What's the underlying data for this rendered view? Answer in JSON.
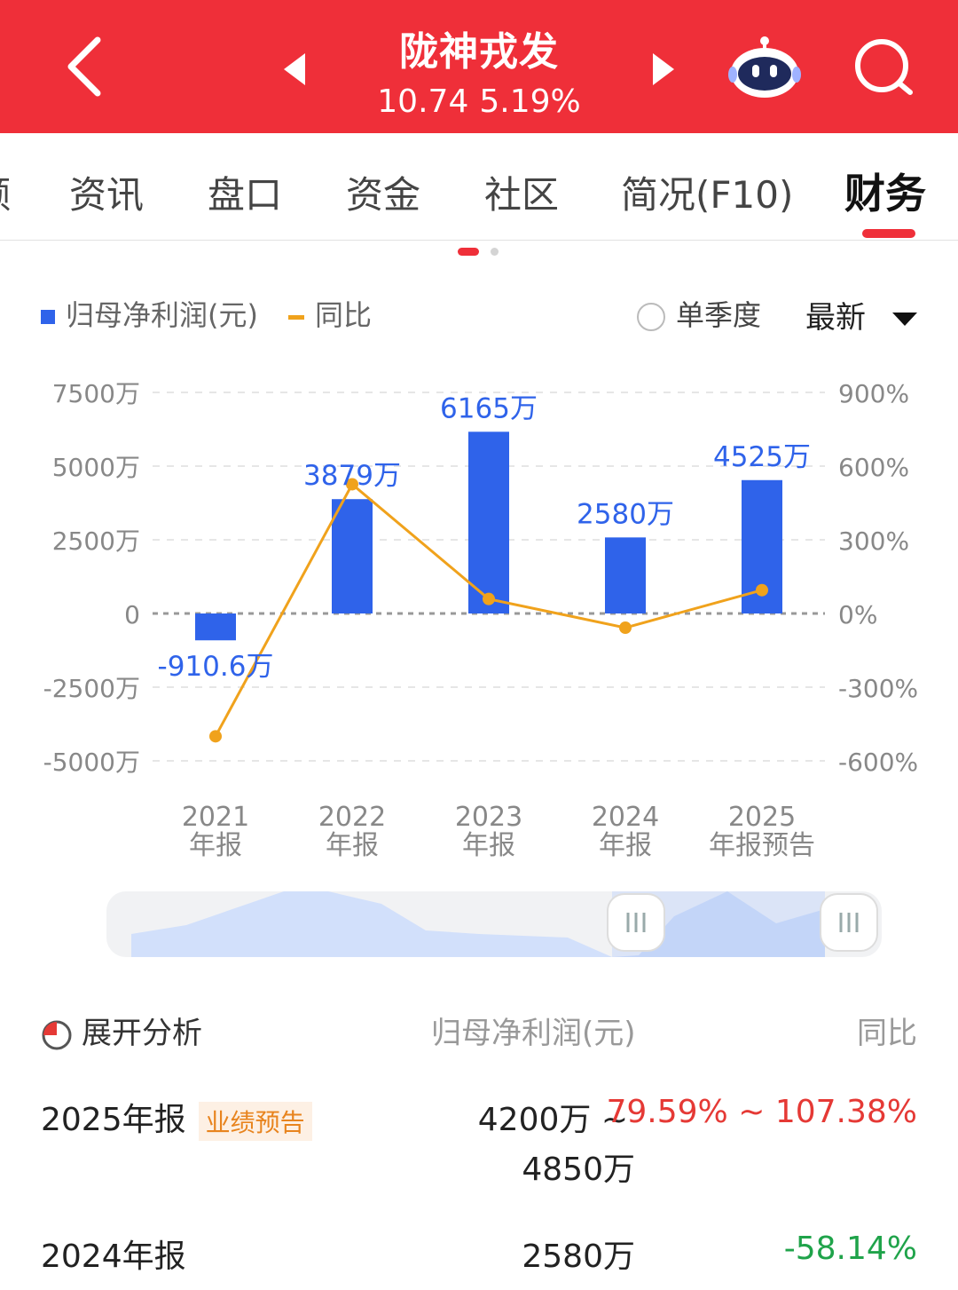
{
  "header": {
    "title": "陇神戎发",
    "price": "10.74",
    "change_pct": "5.19%",
    "bg_color": "#ef2f39"
  },
  "tabs": [
    {
      "label": "资讯"
    },
    {
      "label": "盘口"
    },
    {
      "label": "资金"
    },
    {
      "label": "社区"
    },
    {
      "label": "简况(F10)"
    },
    {
      "label": "财务",
      "active": true
    }
  ],
  "legend": {
    "bar_series": "归母净利润(元)",
    "line_series": "同比",
    "single_quarter": "单季度",
    "period_select": "最新"
  },
  "chart_data": {
    "type": "bar",
    "categories": [
      "2021\n年报",
      "2022\n年报",
      "2023\n年报",
      "2024\n年报",
      "2025\n年报预告"
    ],
    "category_lines": [
      [
        "2021",
        "年报"
      ],
      [
        "2022",
        "年报"
      ],
      [
        "2023",
        "年报"
      ],
      [
        "2024",
        "年报"
      ],
      [
        "2025",
        "年报预告"
      ]
    ],
    "series": [
      {
        "name": "归母净利润(元)",
        "type": "bar",
        "values": [
          -910.6,
          3879,
          6165,
          2580,
          4525
        ],
        "labels": [
          "-910.6万",
          "3879万",
          "6165万",
          "2580万",
          "4525万"
        ],
        "color": "#2f63ea"
      },
      {
        "name": "同比",
        "type": "line",
        "values": [
          -500,
          526,
          59,
          -58,
          95
        ],
        "color": "#f0a21c"
      }
    ],
    "y_left": {
      "ticks": [
        "7500万",
        "5000万",
        "2500万",
        "0",
        "-2500万",
        "-5000万"
      ],
      "tick_values": [
        7500,
        5000,
        2500,
        0,
        -2500,
        -5000
      ],
      "lim": [
        -5000,
        7500
      ]
    },
    "y_right": {
      "ticks": [
        "900%",
        "600%",
        "300%",
        "0%",
        "-300%",
        "-600%"
      ],
      "tick_values": [
        900,
        600,
        300,
        0,
        -300,
        -600
      ],
      "lim": [
        -600,
        900
      ]
    },
    "grid": true
  },
  "analysis": {
    "title": "展开分析",
    "col_value": "归母净利润(元)",
    "col_yoy": "同比"
  },
  "rows": [
    {
      "period": "2025年报",
      "badge": "业绩预告",
      "value_line1": "4200万 ~",
      "value_line2": "4850万",
      "yoy": "79.59% ~ 107.38%",
      "yoy_color": "#e53935"
    },
    {
      "period": "2024年报",
      "value": "2580万",
      "yoy": "-58.14%",
      "yoy_color": "#1fa34a"
    }
  ]
}
